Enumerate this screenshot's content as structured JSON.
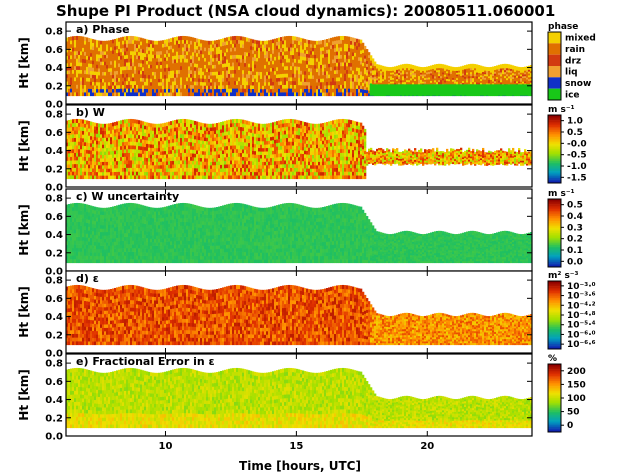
{
  "chart_data": {
    "type": "heatmap",
    "title": "Shupe PI Product (NSA cloud dynamics): 20080511.060001",
    "xlabel": "Time [hours, UTC]",
    "x_ticks": [
      "10",
      "15",
      "20"
    ],
    "xlim": [
      6.2,
      24.0
    ],
    "panels": [
      {
        "label": "a) Phase",
        "ylabel": "Ht [km]",
        "ylim": [
          0.0,
          0.9
        ],
        "y_ticks": [
          "0.0",
          "0.2",
          "0.4",
          "0.6",
          "0.8"
        ],
        "colorbar": {
          "title": "phase",
          "kind": "categorical",
          "categories": [
            "mixed",
            "rain",
            "drz",
            "liq",
            "snow",
            "ice"
          ],
          "colors": [
            "#f4d000",
            "#e07000",
            "#d23a10",
            "#f0a030",
            "#1030c8",
            "#18c818"
          ]
        }
      },
      {
        "label": "b) W",
        "ylabel": "Ht [km]",
        "ylim": [
          0.0,
          0.9
        ],
        "y_ticks": [
          "0.0",
          "0.2",
          "0.4",
          "0.6",
          "0.8"
        ],
        "colorbar": {
          "title": "m s⁻¹",
          "kind": "continuous",
          "ticks": [
            "1.0",
            "0.5",
            "-0.0",
            "-0.5",
            "-1.0",
            "-1.5"
          ],
          "stops": [
            "#8b0000",
            "#e03000",
            "#ff9000",
            "#f0e000",
            "#a0e000",
            "#20c060",
            "#00a0c0",
            "#1020b0"
          ]
        }
      },
      {
        "label": "c) W uncertainty",
        "ylabel": "Ht [km]",
        "ylim": [
          0.0,
          0.9
        ],
        "y_ticks": [
          "0.0",
          "0.2",
          "0.4",
          "0.6",
          "0.8"
        ],
        "colorbar": {
          "title": "m s⁻¹",
          "kind": "continuous",
          "ticks": [
            "0.5",
            "0.4",
            "0.3",
            "0.2",
            "0.1",
            "0.0"
          ],
          "stops": [
            "#8b0000",
            "#e03000",
            "#ff9000",
            "#f0e000",
            "#a0e000",
            "#20c060",
            "#00a0c0",
            "#1020b0"
          ]
        }
      },
      {
        "label": "d) ε",
        "ylabel": "Ht [km]",
        "ylim": [
          0.0,
          0.9
        ],
        "y_ticks": [
          "0.0",
          "0.2",
          "0.4",
          "0.6",
          "0.8"
        ],
        "colorbar": {
          "title": "m² s⁻³",
          "kind": "continuous",
          "ticks": [
            "10⁻³·⁰",
            "10⁻³·⁶",
            "10⁻⁴·²",
            "10⁻⁴·⁸",
            "10⁻⁵·⁴",
            "10⁻⁶·⁰",
            "10⁻⁶·⁶"
          ],
          "stops": [
            "#8b0000",
            "#e03000",
            "#ff9000",
            "#f0e000",
            "#a0e000",
            "#20c060",
            "#00a0c0",
            "#1020b0"
          ]
        }
      },
      {
        "label": "e) Fractional Error in ε",
        "ylabel": "Ht [km]",
        "ylim": [
          0.0,
          0.9
        ],
        "y_ticks": [
          "0.0",
          "0.2",
          "0.4",
          "0.6",
          "0.8"
        ],
        "colorbar": {
          "title": "%",
          "kind": "continuous",
          "ticks": [
            "200",
            "150",
            "100",
            "50",
            "0"
          ],
          "stops": [
            "#8b0000",
            "#e03000",
            "#ff9000",
            "#f0e000",
            "#a0e000",
            "#20c060",
            "#00a0c0",
            "#1020b0"
          ]
        }
      }
    ]
  }
}
